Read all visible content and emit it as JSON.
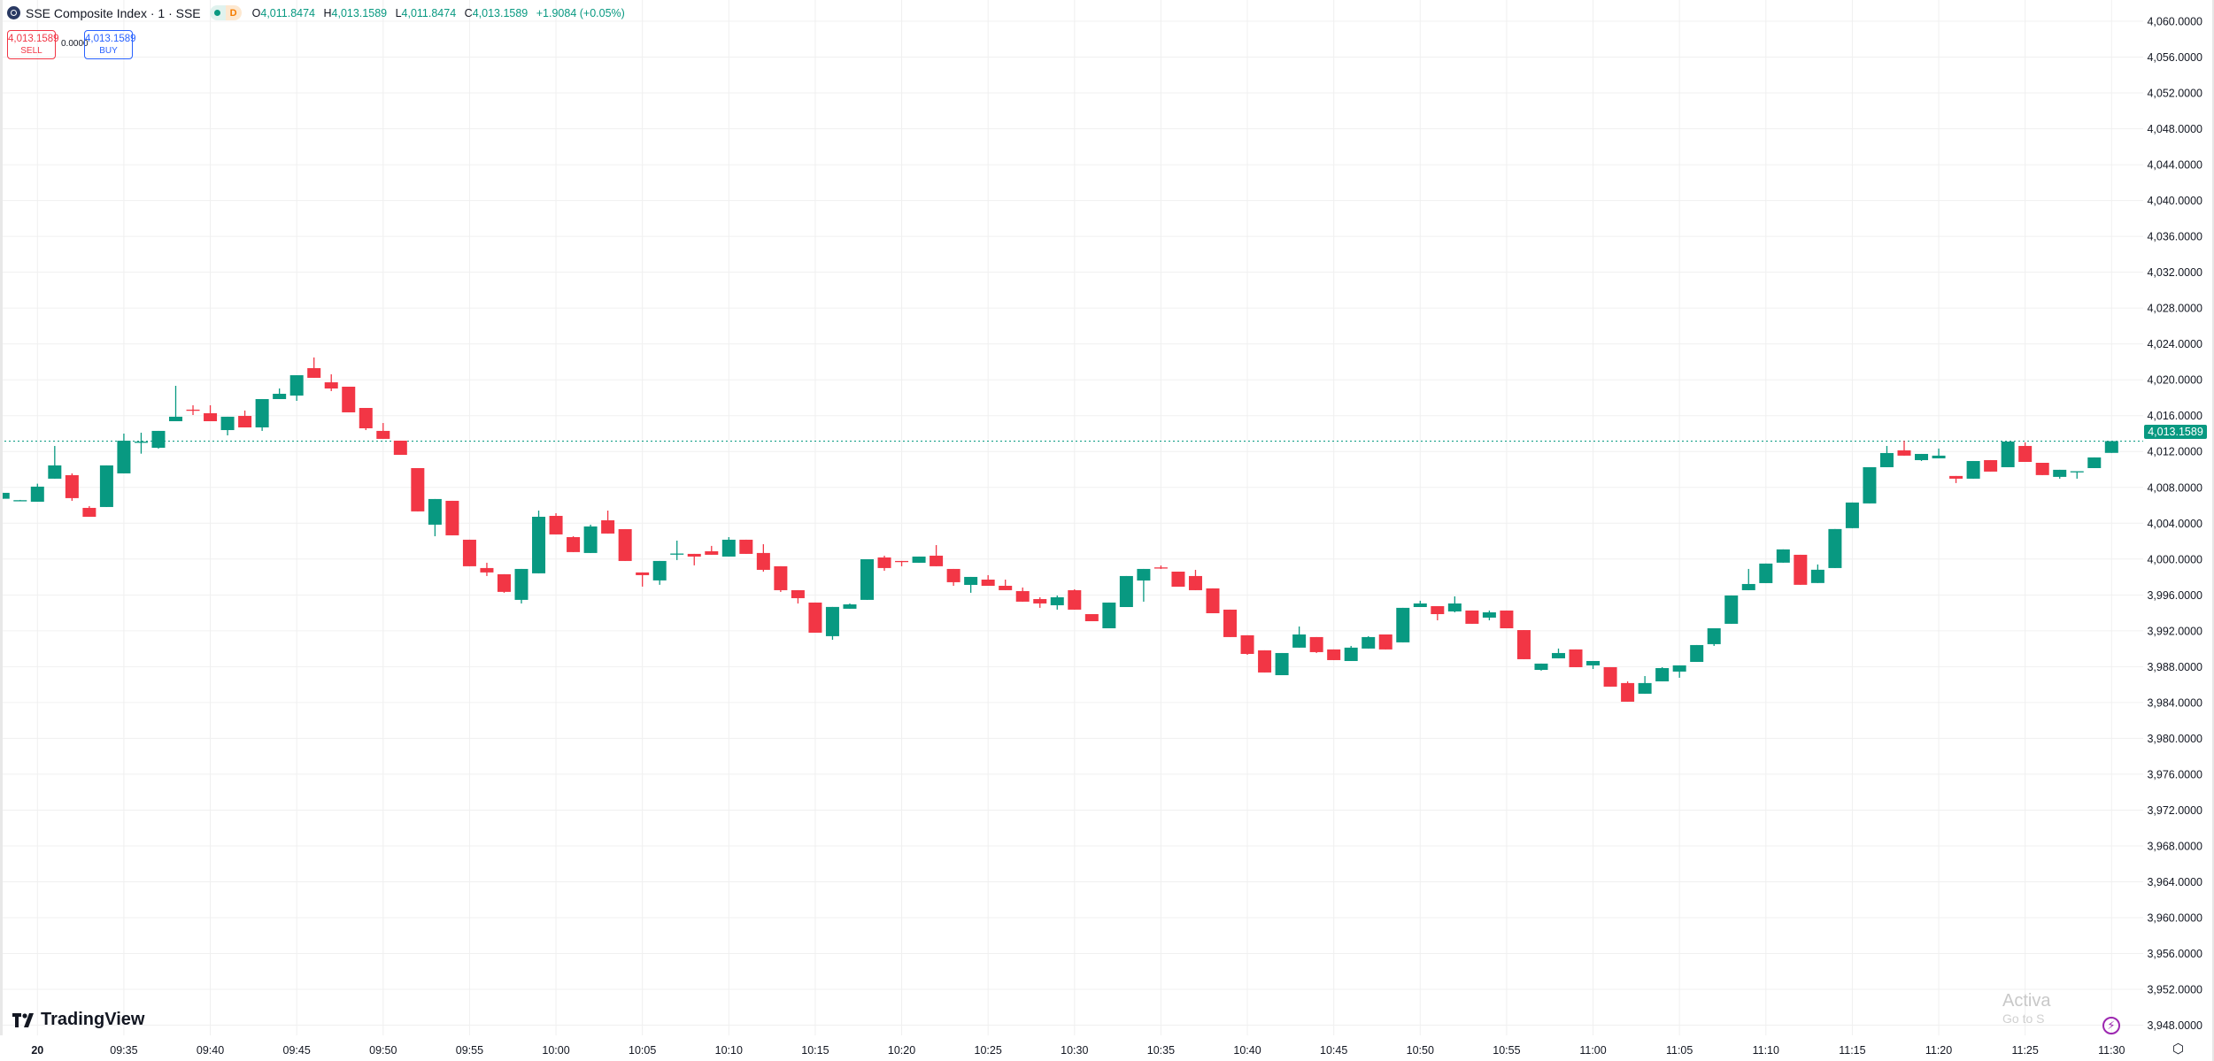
{
  "header": {
    "title": "SSE Composite Index · 1 · SSE",
    "status_badge": "D",
    "ohlc": {
      "o_label": "O",
      "o": "4,011.8474",
      "h_label": "H",
      "h": "4,013.1589",
      "l_label": "L",
      "l": "4,011.8474",
      "c_label": "C",
      "c": "4,013.1589",
      "change": "+1.9084 (+0.05%)"
    }
  },
  "trade": {
    "sell_price": "4,013.1589",
    "sell_label": "SELL",
    "spread": "0.0000",
    "buy_price": "4,013.1589",
    "buy_label": "BUY"
  },
  "current_price_label": "4,013.1589",
  "branding": "TradingView",
  "watermark": {
    "line1": "Activa",
    "line2": "Go to S"
  },
  "colors": {
    "up": "#089981",
    "down": "#f23645",
    "grid": "#f0f0f0",
    "accent": "#2962ff",
    "bolt": "#9c27b0"
  },
  "icons": {
    "bolt": "lightning-icon",
    "settings": "settings-hexagon-icon"
  },
  "chart_data": {
    "type": "candlestick",
    "interval": "1 minute",
    "ylim": [
      3948,
      4060
    ],
    "grid": true,
    "current_price": 4013.1589,
    "y_ticks": [
      "4,060.0000",
      "4,056.0000",
      "4,052.0000",
      "4,048.0000",
      "4,044.0000",
      "4,040.0000",
      "4,036.0000",
      "4,032.0000",
      "4,028.0000",
      "4,024.0000",
      "4,020.0000",
      "4,016.0000",
      "4,012.0000",
      "4,008.0000",
      "4,004.0000",
      "4,000.0000",
      "3,996.0000",
      "3,992.0000",
      "3,988.0000",
      "3,984.0000",
      "3,980.0000",
      "3,976.0000",
      "3,972.0000",
      "3,968.0000",
      "3,964.0000",
      "3,960.0000",
      "3,956.0000",
      "3,952.0000",
      "3,948.0000"
    ],
    "x_ticks": [
      "20",
      "09:35",
      "09:40",
      "09:45",
      "09:50",
      "09:55",
      "10:00",
      "10:05",
      "10:10",
      "10:15",
      "10:20",
      "10:25",
      "10:30",
      "10:35",
      "10:40",
      "10:45",
      "10:50",
      "10:55",
      "11:00",
      "11:05",
      "11:10",
      "11:15",
      "11:20",
      "11:25",
      "11:30"
    ],
    "candles_fields": [
      "time",
      "open",
      "high",
      "low",
      "close"
    ],
    "candles": [
      [
        "09:28",
        4006.73,
        4007.39,
        4006.73,
        4007.39
      ],
      [
        "09:29",
        4006.55,
        4006.6,
        4006.55,
        4006.57
      ],
      [
        "09:30",
        4006.4,
        4008.41,
        4006.4,
        4008.08
      ],
      [
        "09:31",
        4008.97,
        4012.62,
        4008.97,
        4010.45
      ],
      [
        "09:32",
        4009.36,
        4009.56,
        4006.5,
        4006.8
      ],
      [
        "09:33",
        4005.71,
        4005.91,
        4004.72,
        4004.72
      ],
      [
        "09:34",
        4005.81,
        4010.45,
        4005.81,
        4010.45
      ],
      [
        "09:35",
        4009.56,
        4014.0,
        4009.56,
        4013.21
      ],
      [
        "09:36",
        4013.0,
        4014.1,
        4011.76,
        4013.1
      ],
      [
        "09:37",
        4012.42,
        4014.3,
        4012.32,
        4014.3
      ],
      [
        "09:38",
        4015.38,
        4019.33,
        4015.38,
        4015.88
      ],
      [
        "09:39",
        4016.67,
        4017.16,
        4016.07,
        4016.6
      ],
      [
        "09:40",
        4016.27,
        4017.16,
        4015.38,
        4015.38
      ],
      [
        "09:41",
        4014.39,
        4015.88,
        4013.8,
        4015.88
      ],
      [
        "09:42",
        4015.97,
        4016.57,
        4014.69,
        4014.69
      ],
      [
        "09:43",
        4014.69,
        4017.85,
        4014.3,
        4017.85
      ],
      [
        "09:44",
        4017.85,
        4019.03,
        4017.85,
        4018.44
      ],
      [
        "09:45",
        4018.24,
        4020.51,
        4017.65,
        4020.51
      ],
      [
        "09:46",
        4021.3,
        4022.49,
        4020.22,
        4020.22
      ],
      [
        "09:47",
        4019.72,
        4020.61,
        4018.74,
        4019.03
      ],
      [
        "09:48",
        4019.23,
        4019.23,
        4016.37,
        4016.37
      ],
      [
        "09:49",
        4016.86,
        4016.86,
        4014.39,
        4014.59
      ],
      [
        "09:50",
        4014.3,
        4015.18,
        4013.41,
        4013.41
      ],
      [
        "09:51",
        4013.21,
        4013.21,
        4011.63,
        4011.63
      ],
      [
        "09:52",
        4010.15,
        4010.15,
        4005.32,
        4005.32
      ],
      [
        "09:53",
        4003.84,
        4006.7,
        4002.55,
        4006.7
      ],
      [
        "09:54",
        4006.5,
        4006.5,
        4002.65,
        4002.65
      ],
      [
        "09:55",
        4002.16,
        4002.16,
        3999.2,
        3999.2
      ],
      [
        "09:56",
        3999.0,
        3999.59,
        3998.11,
        3998.51
      ],
      [
        "09:57",
        3998.31,
        3998.31,
        3996.24,
        3996.34
      ],
      [
        "09:58",
        3995.45,
        3998.9,
        3995.05,
        3998.9
      ],
      [
        "09:59",
        3998.41,
        4005.41,
        3998.41,
        4004.72
      ],
      [
        "10:00",
        4004.82,
        4005.12,
        4002.75,
        4002.75
      ],
      [
        "10:01",
        4002.45,
        4002.55,
        4000.78,
        4000.78
      ],
      [
        "10:02",
        4000.68,
        4003.84,
        4000.68,
        4003.64
      ],
      [
        "10:03",
        4004.33,
        4005.41,
        4002.85,
        4002.85
      ],
      [
        "10:04",
        4003.34,
        4003.34,
        3999.79,
        3999.79
      ],
      [
        "10:05",
        3998.51,
        3998.51,
        3996.93,
        3998.21
      ],
      [
        "10:06",
        3997.62,
        3999.79,
        3997.13,
        3999.79
      ],
      [
        "10:07",
        4000.58,
        4002.06,
        3999.89,
        4000.62
      ],
      [
        "10:08",
        4000.58,
        4000.58,
        3999.3,
        4000.28
      ],
      [
        "10:09",
        4000.87,
        4001.47,
        4000.48,
        4000.48
      ],
      [
        "10:10",
        4000.28,
        4002.45,
        4000.28,
        4002.16
      ],
      [
        "10:11",
        4002.16,
        4002.16,
        4000.58,
        4000.58
      ],
      [
        "10:12",
        4000.68,
        4001.66,
        3998.6,
        3998.8
      ],
      [
        "10:13",
        3999.2,
        3999.2,
        3996.33,
        3996.53
      ],
      [
        "10:14",
        3996.53,
        3996.53,
        3995.05,
        3995.64
      ],
      [
        "10:15",
        3995.15,
        3995.15,
        3991.79,
        3991.79
      ],
      [
        "10:16",
        3991.4,
        3994.66,
        3991.0,
        3994.66
      ],
      [
        "10:17",
        3994.46,
        3995.05,
        3994.46,
        3994.95
      ],
      [
        "10:18",
        3995.45,
        3999.98,
        3995.45,
        3999.98
      ],
      [
        "10:19",
        4000.18,
        4000.38,
        3998.7,
        3999.0
      ],
      [
        "10:20",
        3999.79,
        3999.79,
        3999.2,
        3999.74
      ],
      [
        "10:21",
        3999.59,
        4000.28,
        3999.59,
        4000.28
      ],
      [
        "10:22",
        4000.38,
        4001.56,
        3999.2,
        3999.2
      ],
      [
        "10:23",
        3998.9,
        3998.9,
        3997.02,
        3997.42
      ],
      [
        "10:24",
        3997.12,
        3998.01,
        3996.24,
        3998.01
      ],
      [
        "10:25",
        3997.71,
        3998.21,
        3997.02,
        3997.02
      ],
      [
        "10:26",
        3997.02,
        3997.71,
        3996.53,
        3996.53
      ],
      [
        "10:27",
        3996.43,
        3996.83,
        3995.25,
        3995.25
      ],
      [
        "10:28",
        3995.54,
        3995.74,
        3994.56,
        3995.05
      ],
      [
        "10:29",
        3994.85,
        3995.94,
        3994.36,
        3995.74
      ],
      [
        "10:30",
        3996.53,
        3996.63,
        3994.36,
        3994.36
      ],
      [
        "10:31",
        3993.86,
        3993.86,
        3993.07,
        3993.07
      ],
      [
        "10:32",
        3992.28,
        3995.15,
        3992.28,
        3995.15
      ],
      [
        "10:33",
        3994.65,
        3998.11,
        3994.65,
        3998.11
      ],
      [
        "10:34",
        3997.61,
        3998.9,
        3995.25,
        3998.9
      ],
      [
        "10:35",
        3999.07,
        3999.29,
        3998.9,
        3999.0
      ],
      [
        "10:36",
        3998.6,
        3998.6,
        3996.92,
        3996.92
      ],
      [
        "10:37",
        3998.11,
        3998.8,
        3996.53,
        3996.53
      ],
      [
        "10:38",
        3996.73,
        3996.73,
        3993.96,
        3993.96
      ],
      [
        "10:39",
        3994.36,
        3994.36,
        3991.3,
        3991.3
      ],
      [
        "10:40",
        3991.5,
        3991.5,
        3989.32,
        3989.42
      ],
      [
        "10:41",
        3989.82,
        3989.82,
        3987.35,
        3987.35
      ],
      [
        "10:42",
        3987.05,
        3989.52,
        3987.05,
        3989.52
      ],
      [
        "10:43",
        3990.12,
        3992.48,
        3990.12,
        3991.59
      ],
      [
        "10:44",
        3991.3,
        3991.3,
        3989.52,
        3989.62
      ],
      [
        "10:45",
        3989.92,
        3989.92,
        3988.73,
        3988.73
      ],
      [
        "10:46",
        3988.63,
        3990.31,
        3988.63,
        3990.12
      ],
      [
        "10:47",
        3990.02,
        3991.4,
        3990.02,
        3991.3
      ],
      [
        "10:48",
        3991.59,
        3991.59,
        3989.92,
        3989.92
      ],
      [
        "10:49",
        3990.71,
        3994.56,
        3990.71,
        3994.56
      ],
      [
        "10:50",
        3994.65,
        3995.35,
        3994.65,
        3995.05
      ],
      [
        "10:51",
        3994.75,
        3994.75,
        3993.17,
        3993.86
      ],
      [
        "10:52",
        3994.16,
        3995.84,
        3994.06,
        3995.05
      ],
      [
        "10:53",
        3994.26,
        3994.26,
        3992.78,
        3992.78
      ],
      [
        "10:54",
        3993.47,
        3994.26,
        3993.17,
        3994.06
      ],
      [
        "10:55",
        3994.26,
        3994.26,
        3992.28,
        3992.28
      ],
      [
        "10:56",
        3992.08,
        3992.08,
        3988.83,
        3988.83
      ],
      [
        "10:57",
        3987.64,
        3988.34,
        3987.55,
        3988.34
      ],
      [
        "10:58",
        3988.93,
        3990.02,
        3988.93,
        3989.52
      ],
      [
        "10:59",
        3989.92,
        3989.92,
        3987.94,
        3987.94
      ],
      [
        "11:00",
        3988.14,
        3988.63,
        3987.74,
        3988.63
      ],
      [
        "11:01",
        3987.94,
        3987.94,
        3985.77,
        3985.77
      ],
      [
        "11:02",
        3986.17,
        3986.36,
        3984.09,
        3984.09
      ],
      [
        "11:03",
        3984.98,
        3986.95,
        3984.98,
        3986.17
      ],
      [
        "11:04",
        3986.36,
        3987.94,
        3986.36,
        3987.84
      ],
      [
        "11:05",
        3987.45,
        3988.14,
        3986.76,
        3988.14
      ],
      [
        "11:06",
        3988.53,
        3990.41,
        3988.53,
        3990.41
      ],
      [
        "11:07",
        3990.51,
        3992.28,
        3990.31,
        3992.28
      ],
      [
        "11:08",
        3992.78,
        3995.94,
        3992.78,
        3995.94
      ],
      [
        "11:09",
        3996.53,
        3998.9,
        3996.53,
        3997.22
      ],
      [
        "11:10",
        3997.32,
        3999.5,
        3997.32,
        3999.5
      ],
      [
        "11:11",
        3999.6,
        4001.08,
        3999.6,
        4001.08
      ],
      [
        "11:12",
        4000.48,
        4000.48,
        3997.13,
        3997.13
      ],
      [
        "11:13",
        3997.33,
        3999.4,
        3997.33,
        3998.81
      ],
      [
        "11:14",
        3999.0,
        4003.35,
        3999.0,
        4003.35
      ],
      [
        "11:15",
        4003.45,
        4006.31,
        4003.45,
        4006.31
      ],
      [
        "11:16",
        4006.21,
        4010.25,
        4006.21,
        4010.25
      ],
      [
        "11:17",
        4010.25,
        4012.62,
        4010.25,
        4011.83
      ],
      [
        "11:18",
        4012.13,
        4013.21,
        4011.54,
        4011.54
      ],
      [
        "11:19",
        4011.04,
        4011.73,
        4010.94,
        4011.73
      ],
      [
        "11:20",
        4011.24,
        4012.33,
        4011.24,
        4011.54
      ],
      [
        "11:21",
        4009.27,
        4009.27,
        4008.48,
        4008.97
      ],
      [
        "11:22",
        4008.97,
        4010.94,
        4008.97,
        4010.94
      ],
      [
        "11:23",
        4011.04,
        4011.04,
        4009.76,
        4009.76
      ],
      [
        "11:24",
        4010.25,
        4013.11,
        4010.25,
        4013.11
      ],
      [
        "11:25",
        4012.62,
        4013.02,
        4010.84,
        4010.84
      ],
      [
        "11:26",
        4010.74,
        4010.74,
        4009.37,
        4009.37
      ],
      [
        "11:27",
        4009.17,
        4009.96,
        4008.97,
        4009.96
      ],
      [
        "11:28",
        4009.76,
        4009.8,
        4008.97,
        4009.8
      ],
      [
        "11:29",
        4010.15,
        4011.34,
        4010.15,
        4011.34
      ],
      [
        "11:30",
        4011.8474,
        4013.1589,
        4011.8474,
        4013.1589
      ]
    ]
  }
}
